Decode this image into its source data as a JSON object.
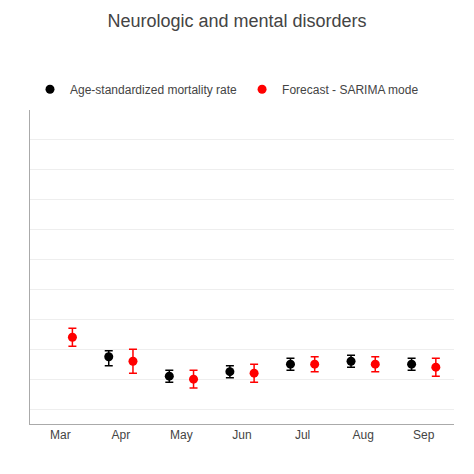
{
  "chart_data": {
    "type": "scatter",
    "title": "Neurologic and mental disorders",
    "categories": [
      "Mar",
      "Apr",
      "May",
      "Jun",
      "Jul",
      "Aug",
      "Sep"
    ],
    "series": [
      {
        "name": "Age-standardized mortality rate",
        "color": "#000000",
        "marker": "circle",
        "values": [
          null,
          2.55,
          2.42,
          2.45,
          2.5,
          2.52,
          2.5
        ],
        "error_lower": [
          null,
          0.06,
          0.04,
          0.04,
          0.04,
          0.04,
          0.04
        ],
        "error_upper": [
          null,
          0.04,
          0.04,
          0.04,
          0.04,
          0.04,
          0.04
        ]
      },
      {
        "name": "Forecast - SARIMA mode",
        "color": "#FF0000",
        "marker": "circle",
        "values": [
          2.68,
          2.52,
          2.4,
          2.44,
          2.5,
          2.5,
          2.48
        ],
        "error_lower": [
          0.06,
          0.08,
          0.06,
          0.06,
          0.05,
          0.05,
          0.06
        ],
        "error_upper": [
          0.06,
          0.08,
          0.06,
          0.06,
          0.05,
          0.05,
          0.06
        ]
      }
    ],
    "ylim": [
      2.1,
      4.2
    ],
    "yticks": [
      2.2,
      2.4,
      2.6,
      2.8,
      3.0,
      3.2,
      3.4,
      3.6,
      3.8,
      4.0,
      4.2
    ],
    "grid": "y",
    "legend": "top left",
    "tick_labels": "x"
  }
}
